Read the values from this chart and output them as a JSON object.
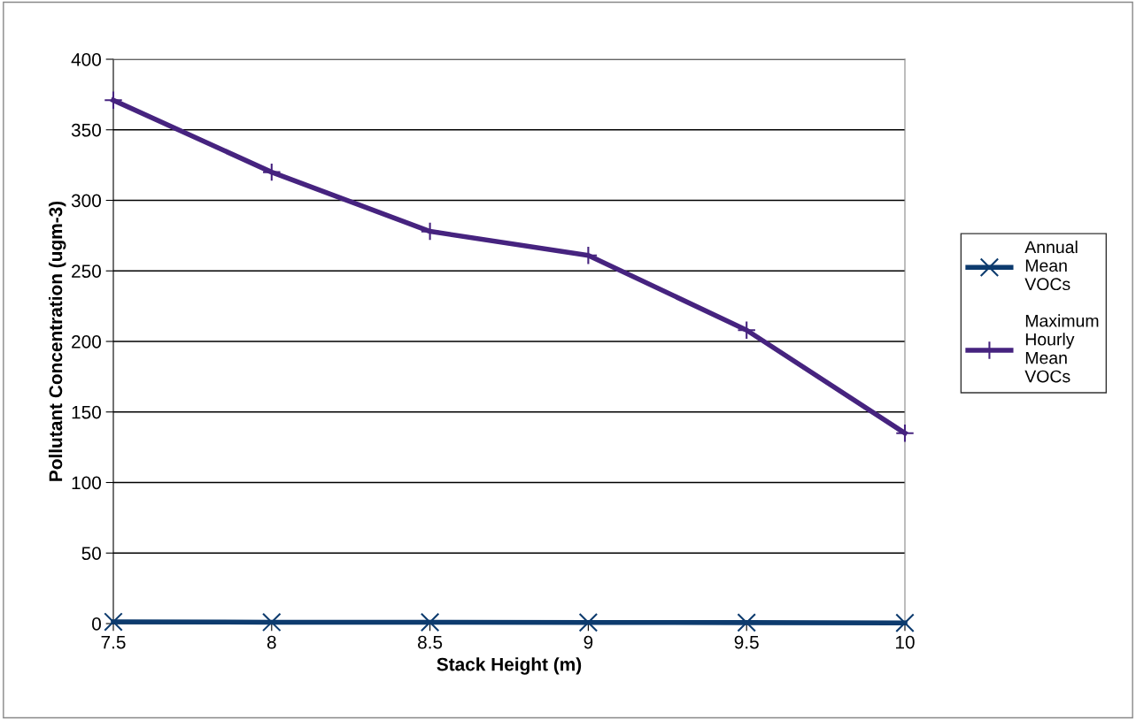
{
  "chart_data": {
    "type": "line",
    "xlabel": "Stack Height (m)",
    "ylabel": "Pollutant Concentration (ugm-3)",
    "x": [
      7.5,
      8,
      8.5,
      9,
      9.5,
      10
    ],
    "series": [
      {
        "name": "Annual Mean VOCs",
        "color": "#0d3b6e",
        "marker": "cross",
        "values": [
          1.2,
          1.0,
          0.9,
          0.8,
          0.7,
          0.5
        ]
      },
      {
        "name": "Maximum Hourly Mean VOCs",
        "color": "#46237f",
        "marker": "plus",
        "values": [
          371,
          320,
          278,
          261,
          208,
          135
        ]
      }
    ],
    "xlim": [
      7.5,
      10
    ],
    "xticks": [
      7.5,
      8,
      8.5,
      9,
      9.5,
      10
    ],
    "ylim": [
      0,
      400
    ],
    "yticks": [
      0,
      50,
      100,
      150,
      200,
      250,
      300,
      350,
      400
    ],
    "grid": "y",
    "legend": "right",
    "line_style": "solid"
  }
}
